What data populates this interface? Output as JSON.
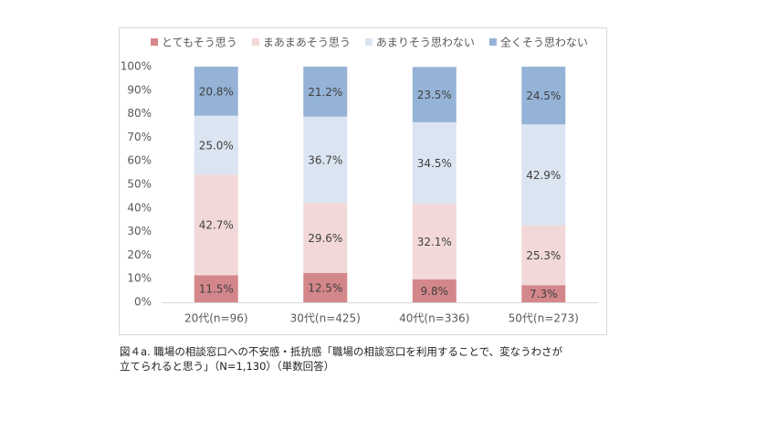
{
  "chart_data": {
    "type": "stacked_bar",
    "categories": [
      "20代(n=96)",
      "30代(n=425)",
      "40代(n=336)",
      "50代(n=273)"
    ],
    "series": [
      {
        "name": "とてもそう思う",
        "color": "#d4878b",
        "values": [
          11.5,
          12.5,
          9.8,
          7.3
        ],
        "value_labels": [
          "11.5%",
          "12.5%",
          "9.8%",
          "7.3%"
        ]
      },
      {
        "name": "まあまあそう思う",
        "color": "#f2d8d8",
        "values": [
          42.7,
          29.6,
          32.1,
          25.3
        ],
        "value_labels": [
          "42.7%",
          "29.6%",
          "32.1%",
          "25.3%"
        ]
      },
      {
        "name": "あまりそう思わない",
        "color": "#dbe4f1",
        "values": [
          25.0,
          36.7,
          34.5,
          42.9
        ],
        "value_labels": [
          "25.0%",
          "36.7%",
          "34.5%",
          "42.9%"
        ]
      },
      {
        "name": "全くそう思わない",
        "color": "#95b3d7",
        "values": [
          20.8,
          21.2,
          23.5,
          24.5
        ],
        "value_labels": [
          "20.8%",
          "21.2%",
          "23.5%",
          "24.5%"
        ]
      }
    ],
    "ylim": [
      0,
      100
    ],
    "yticks": [
      {
        "value": 0,
        "label": "0%"
      },
      {
        "value": 10,
        "label": "10%"
      },
      {
        "value": 20,
        "label": "20%"
      },
      {
        "value": 30,
        "label": "30%"
      },
      {
        "value": 40,
        "label": "40%"
      },
      {
        "value": 50,
        "label": "50%"
      },
      {
        "value": 60,
        "label": "60%"
      },
      {
        "value": 70,
        "label": "70%"
      },
      {
        "value": 80,
        "label": "80%"
      },
      {
        "value": 90,
        "label": "90%"
      },
      {
        "value": 100,
        "label": "100%"
      }
    ],
    "legend": "top"
  },
  "caption": [
    "図４a. 職場の相談窓口への不安感・抵抗感「職場の相談窓口を利用することで、変なうわさが",
    "立てられると思う」（N=1,130）（単数回答）"
  ]
}
